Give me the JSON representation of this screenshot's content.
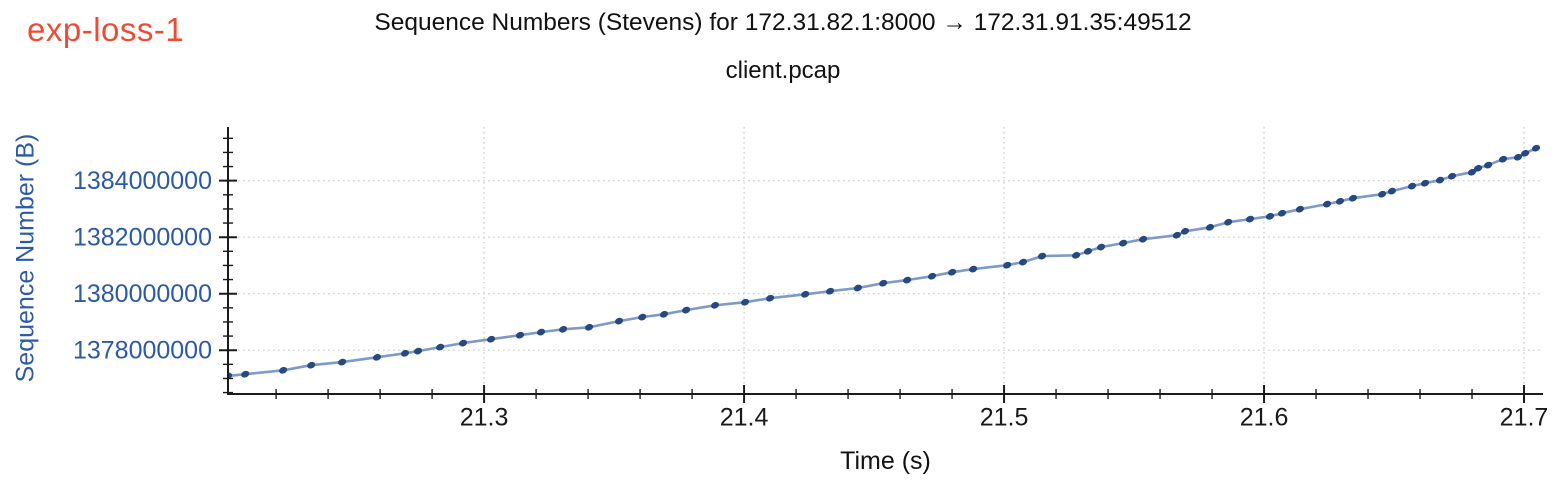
{
  "badge": {
    "label": "exp-loss-1",
    "color": "#ee4b35"
  },
  "header": {
    "title": "Sequence Numbers (Stevens) for 172.31.82.1:8000 → 172.31.91.35:49512",
    "subtitle": "client.pcap"
  },
  "chart_data": {
    "type": "scatter",
    "title": "Sequence Numbers (Stevens) for 172.31.82.1:8000 → 172.31.91.35:49512",
    "subtitle": "client.pcap",
    "xlabel": "Time (s)",
    "ylabel": "Sequence Number (B)",
    "xlim": [
      21.2015,
      21.7073
    ],
    "ylim": [
      1376450000,
      1385900000
    ],
    "x_ticks": [
      {
        "v": 21.3,
        "label": "21.3"
      },
      {
        "v": 21.4,
        "label": "21.4"
      },
      {
        "v": 21.5,
        "label": "21.5"
      },
      {
        "v": 21.6,
        "label": "21.6"
      },
      {
        "v": 21.7,
        "label": "21.7"
      }
    ],
    "y_ticks": [
      {
        "v": 1378000000,
        "label": "1378000000"
      },
      {
        "v": 1380000000,
        "label": "1380000000"
      },
      {
        "v": 1382000000,
        "label": "1382000000"
      },
      {
        "v": 1384000000,
        "label": "1384000000"
      }
    ],
    "x_minor_step": 0.02,
    "y_minor_step": 500000,
    "grid": {
      "on": true,
      "style": "dotted",
      "color": "#cacaca"
    },
    "legend": "none",
    "colors": {
      "marker": "#26497f",
      "line": "#7e9bc8",
      "y_text": "#2d5aa5",
      "x_text": "#1a1a1a",
      "spine": "#1a1a1a"
    },
    "points": [
      [
        21.2015,
        1377090000
      ],
      [
        21.2081,
        1377150000
      ],
      [
        21.2227,
        1377290000
      ],
      [
        21.2335,
        1377470000
      ],
      [
        21.2454,
        1377580000
      ],
      [
        21.2588,
        1377750000
      ],
      [
        21.2696,
        1377890000
      ],
      [
        21.2746,
        1377970000
      ],
      [
        21.2831,
        1378110000
      ],
      [
        21.2919,
        1378250000
      ],
      [
        21.3027,
        1378390000
      ],
      [
        21.3138,
        1378530000
      ],
      [
        21.3219,
        1378640000
      ],
      [
        21.3304,
        1378740000
      ],
      [
        21.3404,
        1378810000
      ],
      [
        21.3519,
        1379030000
      ],
      [
        21.3608,
        1379170000
      ],
      [
        21.3692,
        1379270000
      ],
      [
        21.3777,
        1379420000
      ],
      [
        21.3888,
        1379590000
      ],
      [
        21.4004,
        1379700000
      ],
      [
        21.41,
        1379840000
      ],
      [
        21.4235,
        1379980000
      ],
      [
        21.4331,
        1380090000
      ],
      [
        21.4438,
        1380200000
      ],
      [
        21.4535,
        1380370000
      ],
      [
        21.4627,
        1380480000
      ],
      [
        21.4723,
        1380620000
      ],
      [
        21.48,
        1380760000
      ],
      [
        21.4881,
        1380870000
      ],
      [
        21.5012,
        1381010000
      ],
      [
        21.5073,
        1381120000
      ],
      [
        21.5146,
        1381330000
      ],
      [
        21.5277,
        1381360000
      ],
      [
        21.5323,
        1381500000
      ],
      [
        21.5373,
        1381650000
      ],
      [
        21.5458,
        1381790000
      ],
      [
        21.5535,
        1381930000
      ],
      [
        21.5665,
        1382070000
      ],
      [
        21.5696,
        1382210000
      ],
      [
        21.5792,
        1382350000
      ],
      [
        21.5862,
        1382530000
      ],
      [
        21.5946,
        1382640000
      ],
      [
        21.6023,
        1382740000
      ],
      [
        21.6069,
        1382850000
      ],
      [
        21.6138,
        1382990000
      ],
      [
        21.6242,
        1383170000
      ],
      [
        21.6292,
        1383270000
      ],
      [
        21.6342,
        1383380000
      ],
      [
        21.6454,
        1383520000
      ],
      [
        21.6492,
        1383630000
      ],
      [
        21.6569,
        1383810000
      ],
      [
        21.6619,
        1383910000
      ],
      [
        21.6677,
        1384020000
      ],
      [
        21.6723,
        1384160000
      ],
      [
        21.68,
        1384300000
      ],
      [
        21.6823,
        1384440000
      ],
      [
        21.6862,
        1384550000
      ],
      [
        21.6919,
        1384760000
      ],
      [
        21.6977,
        1384830000
      ],
      [
        21.7004,
        1384970000
      ],
      [
        21.7046,
        1385150000
      ]
    ]
  }
}
